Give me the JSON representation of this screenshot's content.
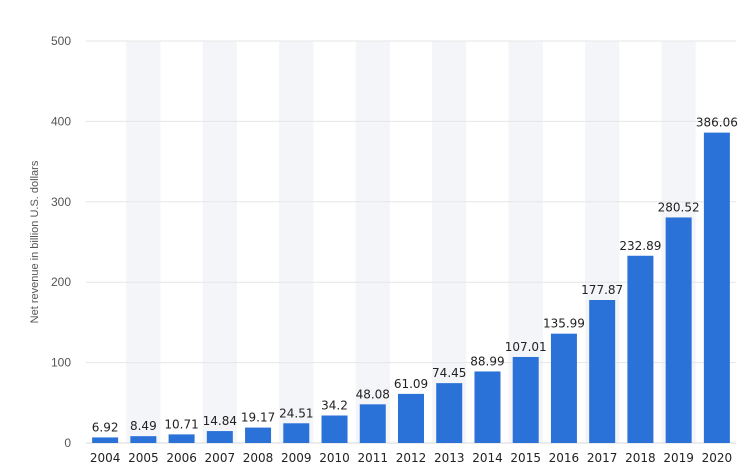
{
  "chart_data": {
    "type": "bar",
    "title": "",
    "xlabel": "",
    "ylabel": "Net revenue in billion U.S. dollars",
    "ylim": [
      0,
      500
    ],
    "yticks": [
      0,
      100,
      200,
      300,
      400,
      500
    ],
    "grid": true,
    "legend": "none",
    "bar_color": "#2a72d8",
    "band_color": "#f4f5f8",
    "categories": [
      "2004",
      "2005",
      "2006",
      "2007",
      "2008",
      "2009",
      "2010",
      "2011",
      "2012",
      "2013",
      "2014",
      "2015",
      "2016",
      "2017",
      "2018",
      "2019",
      "2020"
    ],
    "values": [
      6.92,
      8.49,
      10.71,
      14.84,
      19.17,
      24.51,
      34.2,
      48.08,
      61.09,
      74.45,
      88.99,
      107.01,
      135.99,
      177.87,
      232.89,
      280.52,
      386.06
    ],
    "value_labels": [
      "6.92",
      "8.49",
      "10.71",
      "14.84",
      "19.17",
      "24.51",
      "34.2",
      "48.08",
      "61.09",
      "74.45",
      "88.99",
      "107.01",
      "135.99",
      "177.87",
      "232.89",
      "280.52",
      "386.06"
    ]
  }
}
